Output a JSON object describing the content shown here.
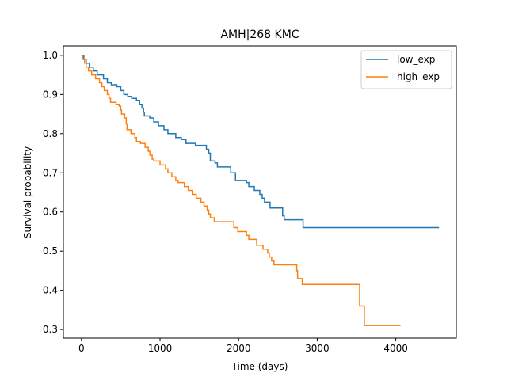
{
  "chart_data": {
    "type": "line",
    "style": "step",
    "title": "AMH|268 KMC",
    "xlabel": "Time (days)",
    "ylabel": "Survival probability",
    "xlim": [
      -230,
      4770
    ],
    "ylim": [
      0.278,
      1.024
    ],
    "xticks": [
      0,
      1000,
      2000,
      3000,
      4000
    ],
    "yticks": [
      0.3,
      0.4,
      0.5,
      0.6,
      0.7,
      0.8,
      0.9,
      1.0
    ],
    "ytick_labels": [
      "0.3",
      "0.4",
      "0.5",
      "0.6",
      "0.7",
      "0.8",
      "0.9",
      "1.0"
    ],
    "grid": false,
    "legend_position": "top-right",
    "series": [
      {
        "name": "low_exp",
        "color": "#1f77b4",
        "points": [
          [
            0,
            1.0
          ],
          [
            30,
            0.99
          ],
          [
            60,
            0.98
          ],
          [
            100,
            0.97
          ],
          [
            150,
            0.96
          ],
          [
            200,
            0.95
          ],
          [
            280,
            0.94
          ],
          [
            330,
            0.93
          ],
          [
            380,
            0.925
          ],
          [
            450,
            0.92
          ],
          [
            500,
            0.91
          ],
          [
            540,
            0.9
          ],
          [
            590,
            0.895
          ],
          [
            640,
            0.89
          ],
          [
            700,
            0.885
          ],
          [
            740,
            0.875
          ],
          [
            770,
            0.865
          ],
          [
            790,
            0.855
          ],
          [
            800,
            0.845
          ],
          [
            870,
            0.84
          ],
          [
            920,
            0.83
          ],
          [
            980,
            0.82
          ],
          [
            1050,
            0.81
          ],
          [
            1100,
            0.8
          ],
          [
            1200,
            0.79
          ],
          [
            1270,
            0.785
          ],
          [
            1330,
            0.775
          ],
          [
            1450,
            0.77
          ],
          [
            1590,
            0.76
          ],
          [
            1620,
            0.75
          ],
          [
            1640,
            0.73
          ],
          [
            1700,
            0.725
          ],
          [
            1730,
            0.715
          ],
          [
            1900,
            0.7
          ],
          [
            1960,
            0.68
          ],
          [
            2100,
            0.675
          ],
          [
            2130,
            0.665
          ],
          [
            2200,
            0.655
          ],
          [
            2270,
            0.645
          ],
          [
            2300,
            0.635
          ],
          [
            2330,
            0.625
          ],
          [
            2400,
            0.61
          ],
          [
            2560,
            0.59
          ],
          [
            2580,
            0.58
          ],
          [
            2820,
            0.56
          ],
          [
            4550,
            0.56
          ]
        ]
      },
      {
        "name": "high_exp",
        "color": "#ff7f0e",
        "points": [
          [
            0,
            1.0
          ],
          [
            15,
            0.99
          ],
          [
            40,
            0.98
          ],
          [
            60,
            0.97
          ],
          [
            90,
            0.96
          ],
          [
            130,
            0.95
          ],
          [
            180,
            0.94
          ],
          [
            230,
            0.93
          ],
          [
            260,
            0.92
          ],
          [
            290,
            0.91
          ],
          [
            330,
            0.9
          ],
          [
            350,
            0.89
          ],
          [
            370,
            0.88
          ],
          [
            440,
            0.875
          ],
          [
            480,
            0.87
          ],
          [
            500,
            0.86
          ],
          [
            510,
            0.85
          ],
          [
            550,
            0.84
          ],
          [
            570,
            0.825
          ],
          [
            580,
            0.81
          ],
          [
            630,
            0.8
          ],
          [
            680,
            0.79
          ],
          [
            700,
            0.78
          ],
          [
            750,
            0.775
          ],
          [
            810,
            0.765
          ],
          [
            850,
            0.755
          ],
          [
            870,
            0.745
          ],
          [
            900,
            0.735
          ],
          [
            920,
            0.73
          ],
          [
            1000,
            0.72
          ],
          [
            1070,
            0.71
          ],
          [
            1100,
            0.7
          ],
          [
            1150,
            0.69
          ],
          [
            1200,
            0.68
          ],
          [
            1230,
            0.675
          ],
          [
            1310,
            0.665
          ],
          [
            1360,
            0.655
          ],
          [
            1410,
            0.645
          ],
          [
            1460,
            0.635
          ],
          [
            1520,
            0.625
          ],
          [
            1560,
            0.615
          ],
          [
            1600,
            0.605
          ],
          [
            1620,
            0.595
          ],
          [
            1640,
            0.585
          ],
          [
            1690,
            0.575
          ],
          [
            1940,
            0.56
          ],
          [
            1990,
            0.55
          ],
          [
            2100,
            0.54
          ],
          [
            2130,
            0.53
          ],
          [
            2230,
            0.515
          ],
          [
            2310,
            0.505
          ],
          [
            2370,
            0.495
          ],
          [
            2390,
            0.485
          ],
          [
            2420,
            0.475
          ],
          [
            2450,
            0.465
          ],
          [
            2740,
            0.45
          ],
          [
            2750,
            0.43
          ],
          [
            2810,
            0.415
          ],
          [
            3540,
            0.36
          ],
          [
            3600,
            0.31
          ],
          [
            4060,
            0.31
          ]
        ]
      }
    ]
  }
}
